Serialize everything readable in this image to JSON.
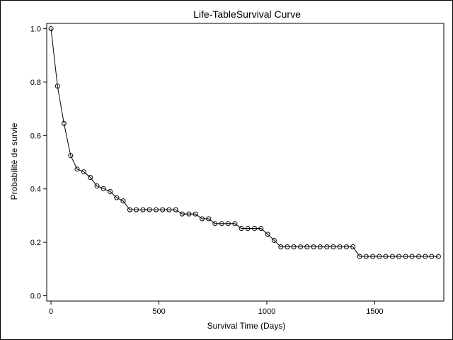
{
  "chart_data": {
    "type": "line",
    "title": "Life-TableSurvival Curve",
    "xlabel": "Survival Time (Days)",
    "ylabel": "Probabilité de survie",
    "xlim": [
      -20,
      1820
    ],
    "ylim": [
      -0.02,
      1.02
    ],
    "xticks": [
      0,
      500,
      1000,
      1500
    ],
    "yticks": [
      0.0,
      0.2,
      0.4,
      0.6,
      0.8,
      1.0
    ],
    "ytick_labels": [
      "0.0",
      "0.2",
      "0.4",
      "0.6",
      "0.8",
      "1.0"
    ],
    "grid": false,
    "series": [
      {
        "marker": "circle",
        "x": [
          0,
          30,
          60,
          91,
          121,
          152,
          182,
          213,
          243,
          274,
          304,
          334,
          365,
          395,
          426,
          456,
          487,
          517,
          547,
          578,
          608,
          639,
          669,
          700,
          730,
          760,
          791,
          821,
          852,
          882,
          912,
          943,
          973,
          1004,
          1034,
          1065,
          1095,
          1125,
          1156,
          1186,
          1217,
          1247,
          1278,
          1308,
          1338,
          1369,
          1399,
          1430,
          1460,
          1491,
          1521,
          1551,
          1582,
          1612,
          1643,
          1673,
          1704,
          1734,
          1764,
          1795
        ],
        "y": [
          1.0,
          0.785,
          0.645,
          0.525,
          0.474,
          0.464,
          0.443,
          0.411,
          0.401,
          0.39,
          0.367,
          0.355,
          0.322,
          0.322,
          0.322,
          0.322,
          0.322,
          0.322,
          0.322,
          0.322,
          0.306,
          0.306,
          0.306,
          0.288,
          0.288,
          0.27,
          0.27,
          0.27,
          0.27,
          0.252,
          0.252,
          0.252,
          0.252,
          0.23,
          0.207,
          0.183,
          0.183,
          0.183,
          0.183,
          0.183,
          0.183,
          0.183,
          0.183,
          0.183,
          0.183,
          0.183,
          0.183,
          0.147,
          0.147,
          0.147,
          0.147,
          0.147,
          0.147,
          0.147,
          0.147,
          0.147,
          0.147,
          0.147,
          0.147,
          0.147
        ]
      }
    ]
  }
}
